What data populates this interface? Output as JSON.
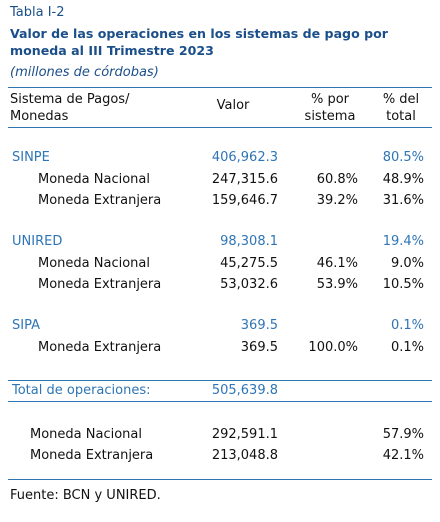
{
  "label": "Tabla I-2",
  "title": [
    "Valor de las operaciones en los sistemas de pago por",
    "moneda al III Trimestre 2023"
  ],
  "units": "(millones de córdobas)",
  "table": {
    "header": [
      [
        "Sistema de Pagos/",
        "Monedas"
      ],
      [
        "Valor"
      ],
      [
        "% por",
        "sistema"
      ],
      [
        "% del",
        "total"
      ]
    ],
    "groups": [
      {
        "name": "SINPE",
        "value": "406,962.3",
        "share_total": "80.5%",
        "items": [
          {
            "name": "Moneda Nacional",
            "value": "247,315.6",
            "share_system": "60.8%",
            "share_total": "48.9%"
          },
          {
            "name": "Moneda Extranjera",
            "value": "159,646.7",
            "share_system": "39.2%",
            "share_total": "31.6%"
          }
        ]
      },
      {
        "name": "UNIRED",
        "value": "98,308.1",
        "share_total": "19.4%",
        "items": [
          {
            "name": "Moneda Nacional",
            "value": "45,275.5",
            "share_system": "46.1%",
            "share_total": "9.0%"
          },
          {
            "name": "Moneda Extranjera",
            "value": "53,032.6",
            "share_system": "53.9%",
            "share_total": "10.5%"
          }
        ]
      },
      {
        "name": "SIPA",
        "value": "369.5",
        "share_total": "0.1%",
        "items": [
          {
            "name": "Moneda Extranjera",
            "value": "369.5",
            "share_system": "100.0%",
            "share_total": "0.1%"
          }
        ]
      }
    ],
    "total": {
      "label": "Total de operaciones:",
      "value": "505,639.8"
    },
    "summary": [
      {
        "name": "Moneda Nacional",
        "value": "292,591.1",
        "share_total": "57.9%"
      },
      {
        "name": "Moneda Extranjera",
        "value": "213,048.8",
        "share_total": "42.1%"
      }
    ]
  },
  "source": "Fuente: BCN y UNIRED."
}
